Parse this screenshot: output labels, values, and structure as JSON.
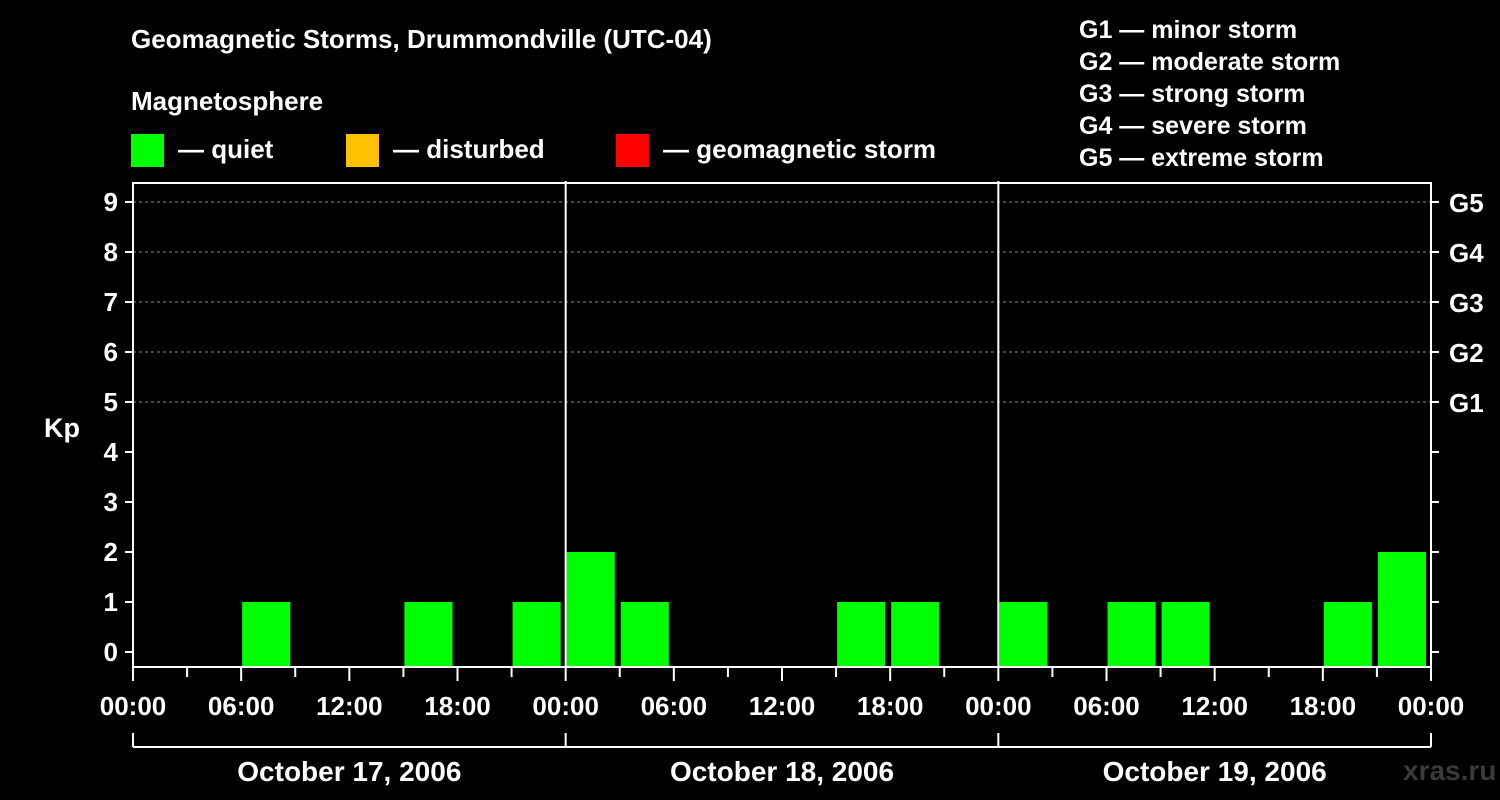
{
  "title": "Geomagnetic Storms, Drummondville (UTC-04)",
  "subtitle": "Magnetosphere",
  "legend": [
    {
      "label": "— quiet",
      "color": "#00ff00"
    },
    {
      "label": "— disturbed",
      "color": "#ffc000"
    },
    {
      "label": "— geomagnetic storm",
      "color": "#ff0000"
    }
  ],
  "storm_scale": [
    "G1 — minor storm",
    "G2 — moderate storm",
    "G3 — strong storm",
    "G4 — severe storm",
    "G5 — extreme storm"
  ],
  "watermark": "xras.ru",
  "chart_data": {
    "type": "bar",
    "ylabel": "Kp",
    "xlabel": "",
    "ylim": [
      0,
      9
    ],
    "yticks": [
      0,
      1,
      2,
      3,
      4,
      5,
      6,
      7,
      8,
      9
    ],
    "right_axis_labels": [
      {
        "kp": 5,
        "label": "G1"
      },
      {
        "kp": 6,
        "label": "G2"
      },
      {
        "kp": 7,
        "label": "G3"
      },
      {
        "kp": 8,
        "label": "G4"
      },
      {
        "kp": 9,
        "label": "G5"
      }
    ],
    "grid": "horizontal dashed at Kp 5-9",
    "x_tick_labels": [
      "00:00",
      "06:00",
      "12:00",
      "18:00",
      "00:00",
      "06:00",
      "12:00",
      "18:00",
      "00:00",
      "06:00",
      "12:00",
      "18:00",
      "00:00"
    ],
    "days": [
      "October 17, 2006",
      "October 18, 2006",
      "October 19, 2006"
    ],
    "interval_hours": 3,
    "categories": [
      "Oct 17 00:00",
      "Oct 17 03:00",
      "Oct 17 06:00",
      "Oct 17 09:00",
      "Oct 17 12:00",
      "Oct 17 15:00",
      "Oct 17 18:00",
      "Oct 17 21:00",
      "Oct 18 00:00",
      "Oct 18 03:00",
      "Oct 18 06:00",
      "Oct 18 09:00",
      "Oct 18 12:00",
      "Oct 18 15:00",
      "Oct 18 18:00",
      "Oct 18 21:00",
      "Oct 19 00:00",
      "Oct 19 03:00",
      "Oct 19 06:00",
      "Oct 19 09:00",
      "Oct 19 12:00",
      "Oct 19 15:00",
      "Oct 19 18:00",
      "Oct 19 21:00"
    ],
    "values": [
      0,
      0,
      1,
      0,
      0,
      1,
      0,
      1,
      2,
      1,
      0,
      0,
      0,
      1,
      1,
      0,
      1,
      0,
      1,
      1,
      0,
      0,
      1,
      2
    ],
    "status": [
      "quiet",
      "quiet",
      "quiet",
      "quiet",
      "quiet",
      "quiet",
      "quiet",
      "quiet",
      "quiet",
      "quiet",
      "quiet",
      "quiet",
      "quiet",
      "quiet",
      "quiet",
      "quiet",
      "quiet",
      "quiet",
      "quiet",
      "quiet",
      "quiet",
      "quiet",
      "quiet",
      "quiet"
    ]
  }
}
